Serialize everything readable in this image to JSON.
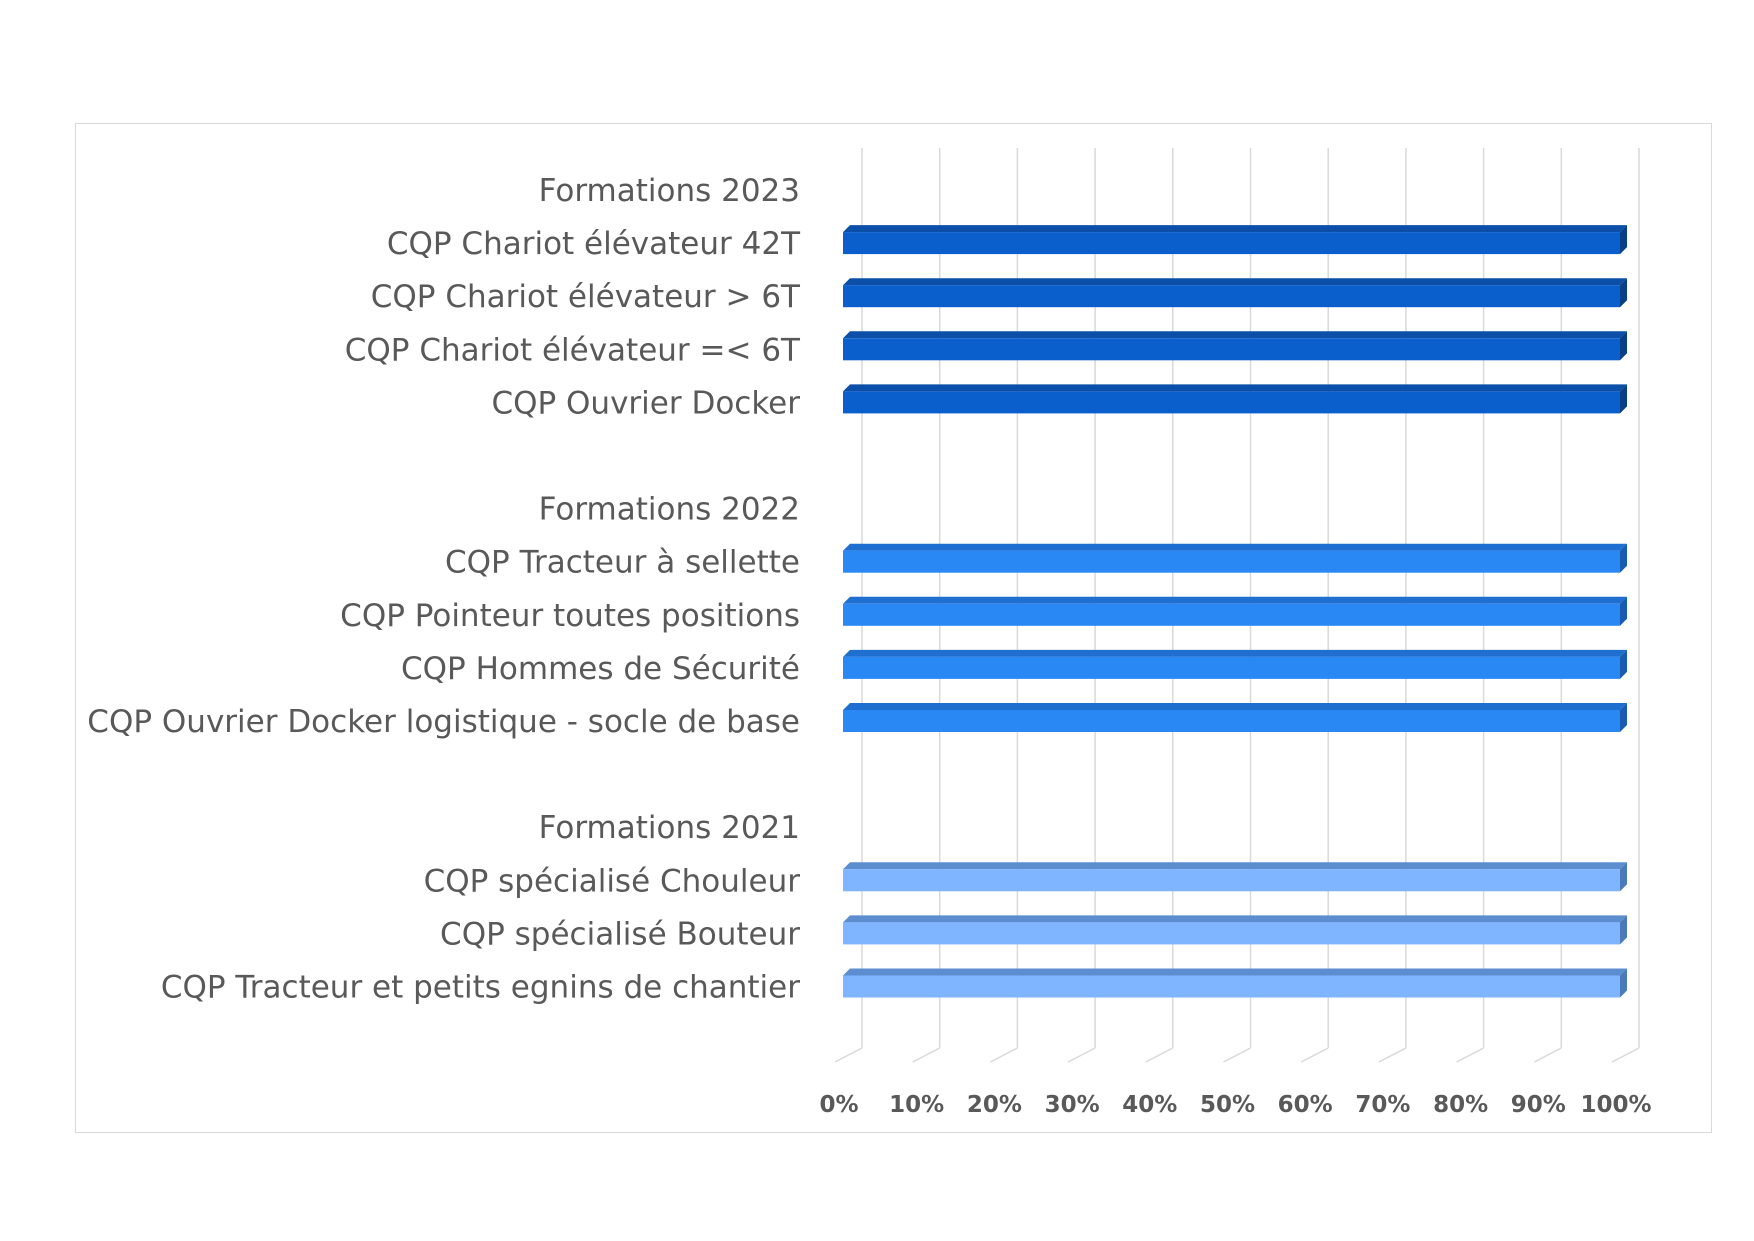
{
  "chart_data": {
    "type": "bar",
    "orientation": "horizontal",
    "style": "3d-stacked-100",
    "categories": [
      "Formations 2023",
      "CQP Chariot élévateur 42T",
      "CQP Chariot élévateur > 6T",
      "CQP Chariot élévateur =< 6T",
      "CQP Ouvrier Docker",
      "",
      "Formations 2022",
      "CQP Tracteur à sellette ",
      "CQP Pointeur toutes positions ",
      "CQP Hommes de Sécurité",
      "CQP Ouvrier Docker logistique - socle de base ",
      "",
      "Formations 2021",
      "CQP spécialisé Chouleur ",
      "CQP spécialisé Bouteur ",
      "CQP Tracteur et petits egnins de chantier "
    ],
    "values": [
      null,
      100,
      100,
      100,
      100,
      null,
      null,
      100,
      100,
      100,
      100,
      null,
      null,
      100,
      100,
      100
    ],
    "bar_groups": [
      "2023",
      "2023",
      "2023",
      "2023",
      "2023",
      "",
      "2022",
      "2022",
      "2022",
      "2022",
      "2022",
      "",
      "2021",
      "2021",
      "2021",
      "2021"
    ],
    "group_colors": {
      "2023": {
        "front": "#0a5fcc",
        "top": "#0b4fa8",
        "side": "#083f87"
      },
      "2022": {
        "front": "#2a88f5",
        "top": "#1f6fd1",
        "side": "#175cb0"
      },
      "2021": {
        "front": "#7fb5ff",
        "top": "#5c8dcf",
        "side": "#4a7ab8"
      }
    },
    "x_ticks": [
      "0%",
      "10%",
      "20%",
      "30%",
      "40%",
      "50%",
      "60%",
      "70%",
      "80%",
      "90%",
      "100%"
    ],
    "xlim": [
      0,
      100
    ],
    "x_unit": "%",
    "grid": true,
    "gridline_color": "#d9d9d9",
    "label_color": "#595959",
    "legend": "none",
    "title": "",
    "xlabel": "",
    "ylabel": ""
  }
}
